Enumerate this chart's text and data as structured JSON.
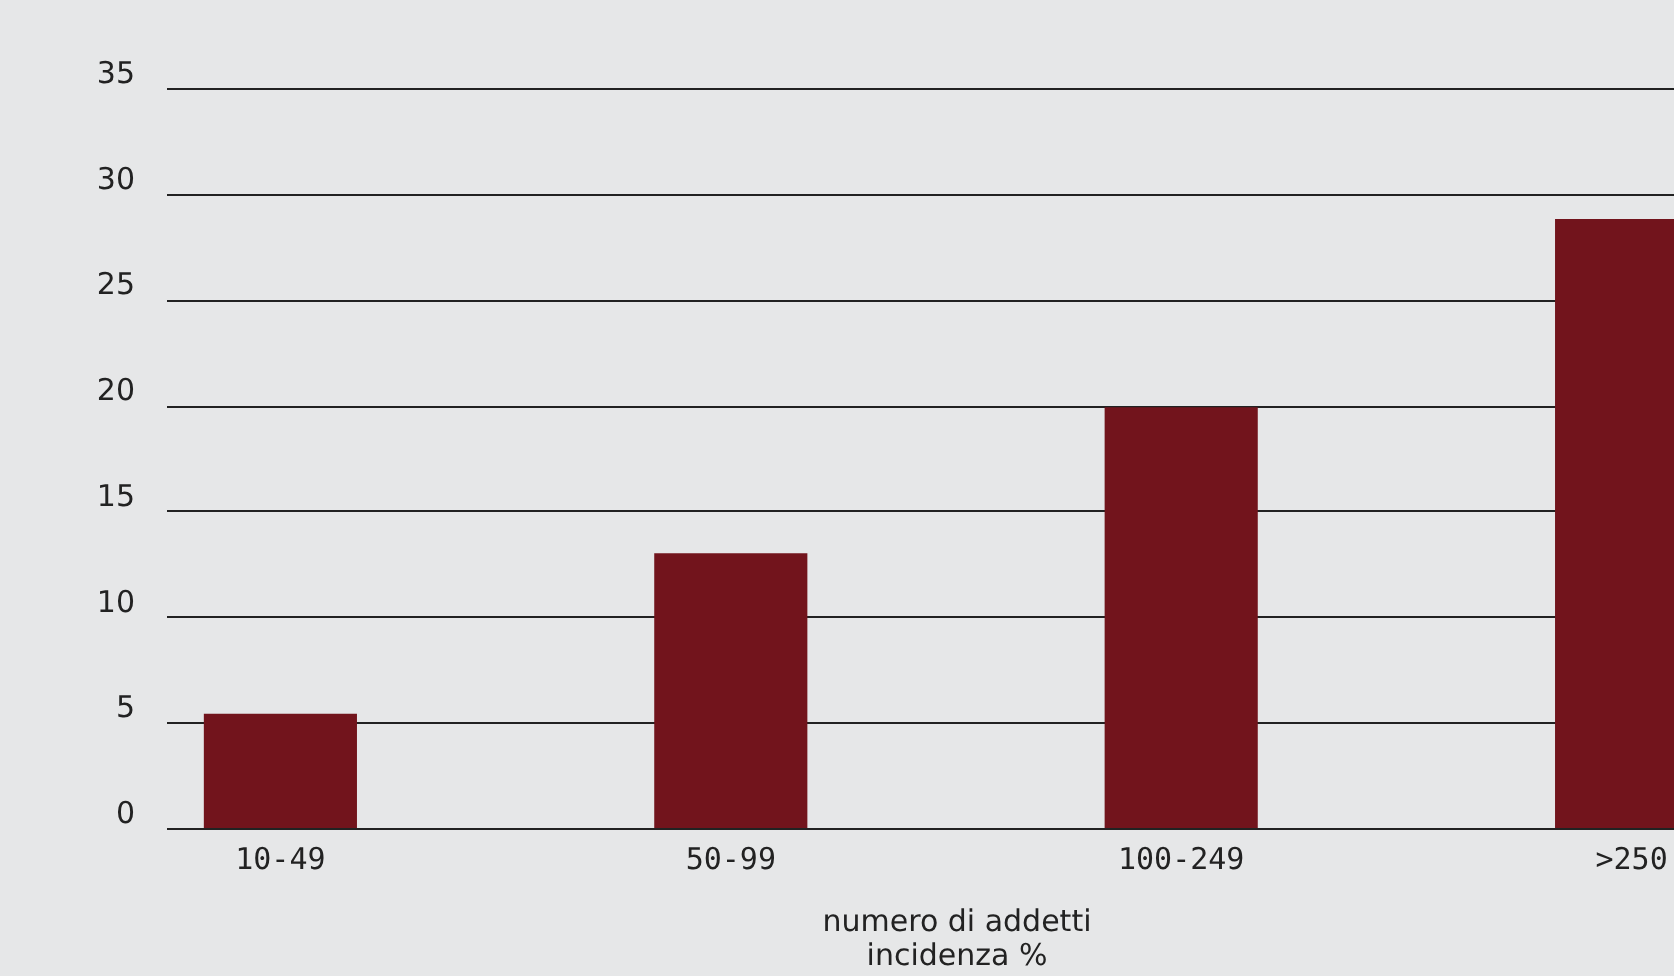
{
  "chart_data": {
    "type": "bar",
    "xlabel": "numero di addetti",
    "annotations": [
      "incidenza %"
    ],
    "categories": [
      "10-49",
      "50-99",
      "100-249",
      ">250"
    ],
    "values": [
      5.4,
      13.0,
      19.9,
      28.8
    ],
    "color": "#72141c",
    "ylim": [
      0,
      35
    ],
    "yticks": [
      0,
      5,
      10,
      15,
      20,
      25,
      30,
      35
    ],
    "grid": "y"
  }
}
